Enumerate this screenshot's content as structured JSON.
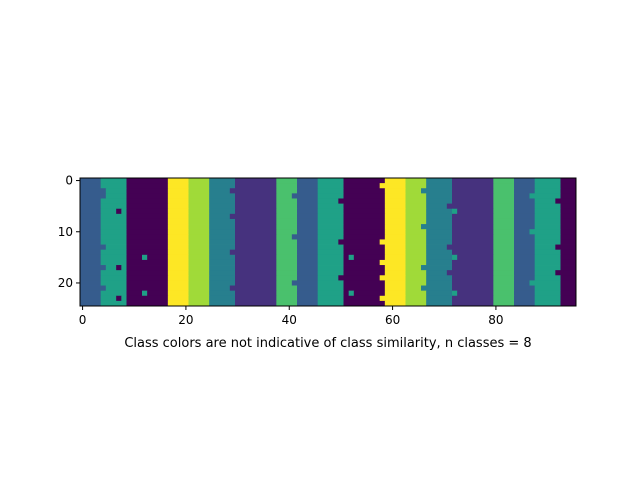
{
  "chart_data": {
    "type": "heatmap",
    "title": "",
    "xlabel": "Class colors are not indicative of class similarity, n classes = 8",
    "ylabel": "",
    "n_classes": 8,
    "n_columns": 96,
    "n_rows": 25,
    "xlim": [
      -0.5,
      95.5
    ],
    "ylim": [
      24.5,
      -0.5
    ],
    "x_ticks": [
      0,
      20,
      40,
      60,
      80
    ],
    "y_ticks": [
      0,
      10,
      20
    ],
    "grid": false,
    "legend": "none",
    "colormap": [
      "#440154",
      "#46327e",
      "#365c8d",
      "#277f8e",
      "#1fa187",
      "#4ac16d",
      "#a0da39",
      "#fde725"
    ],
    "column_segments": [
      {
        "start": 0,
        "end": 3,
        "class": 2
      },
      {
        "start": 4,
        "end": 8,
        "class": 4
      },
      {
        "start": 9,
        "end": 16,
        "class": 0
      },
      {
        "start": 17,
        "end": 20,
        "class": 7
      },
      {
        "start": 21,
        "end": 24,
        "class": 6
      },
      {
        "start": 25,
        "end": 29,
        "class": 3
      },
      {
        "start": 30,
        "end": 37,
        "class": 1
      },
      {
        "start": 38,
        "end": 41,
        "class": 5
      },
      {
        "start": 42,
        "end": 45,
        "class": 2
      },
      {
        "start": 46,
        "end": 50,
        "class": 4
      },
      {
        "start": 51,
        "end": 58,
        "class": 0
      },
      {
        "start": 59,
        "end": 62,
        "class": 7
      },
      {
        "start": 63,
        "end": 66,
        "class": 6
      },
      {
        "start": 67,
        "end": 71,
        "class": 3
      },
      {
        "start": 72,
        "end": 79,
        "class": 1
      },
      {
        "start": 80,
        "end": 83,
        "class": 5
      },
      {
        "start": 84,
        "end": 87,
        "class": 2
      },
      {
        "start": 88,
        "end": 92,
        "class": 4
      },
      {
        "start": 93,
        "end": 95,
        "class": 0
      }
    ],
    "cell_overrides": [
      {
        "col": 8,
        "rows": [
          0,
          1,
          2,
          3,
          4,
          5,
          6,
          7,
          8,
          9,
          10,
          11,
          12,
          13,
          14,
          15,
          16,
          17,
          18,
          19,
          20,
          21,
          22,
          23,
          24
        ],
        "class": 4
      },
      {
        "col": 4,
        "rows": [
          2,
          3,
          13,
          17,
          21
        ],
        "class": 2
      },
      {
        "col": 16,
        "rows": [
          8
        ],
        "class": 0
      },
      {
        "col": 12,
        "rows": [
          15
        ],
        "class": 4
      },
      {
        "col": 12,
        "rows": [
          22
        ],
        "class": 4
      },
      {
        "col": 7,
        "rows": [
          6,
          17,
          23
        ],
        "class": 0
      },
      {
        "col": 29,
        "rows": [
          2,
          7,
          14,
          21
        ],
        "class": 1
      },
      {
        "col": 37,
        "rows": [
          0,
          9,
          16
        ],
        "class": 1
      },
      {
        "col": 41,
        "rows": [
          3,
          11,
          20
        ],
        "class": 2
      },
      {
        "col": 50,
        "rows": [
          4,
          12,
          19
        ],
        "class": 0
      },
      {
        "col": 52,
        "rows": [
          15,
          22
        ],
        "class": 4
      },
      {
        "col": 58,
        "rows": [
          1,
          8,
          12,
          16,
          19,
          23
        ],
        "class": 7
      },
      {
        "col": 58,
        "rows": [
          8
        ],
        "class": 0
      },
      {
        "col": 66,
        "rows": [
          2,
          9,
          17,
          21
        ],
        "class": 3
      },
      {
        "col": 71,
        "rows": [
          5,
          13,
          18
        ],
        "class": 1
      },
      {
        "col": 72,
        "rows": [
          6,
          15,
          22
        ],
        "class": 4
      },
      {
        "col": 87,
        "rows": [
          3,
          10,
          20
        ],
        "class": 4
      },
      {
        "col": 92,
        "rows": [
          4,
          13,
          18
        ],
        "class": 0
      }
    ]
  }
}
